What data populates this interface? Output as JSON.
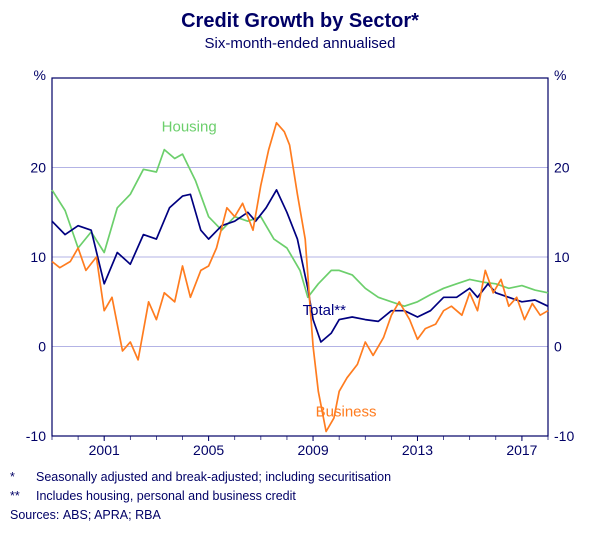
{
  "title": "Credit Growth by Sector*",
  "subtitle": "Six-month-ended annualised",
  "y_unit_left": "%",
  "y_unit_right": "%",
  "chart": {
    "type": "line",
    "background_color": "#ffffff",
    "plot_border_color": "#000066",
    "grid_color": "#9a9add",
    "text_color": "#000066",
    "xlim": [
      1999,
      2018
    ],
    "ylim": [
      -10,
      30
    ],
    "yticks": [
      -10,
      0,
      10,
      20
    ],
    "xticks": [
      2001,
      2005,
      2009,
      2013,
      2017
    ],
    "line_width": 1.7,
    "label_fontsize": 14,
    "tick_fontsize": 14,
    "series": {
      "housing": {
        "label": "Housing",
        "color": "#6ccf6c",
        "label_pos": {
          "x": 2003.2,
          "y": 24
        },
        "data": [
          [
            1999.0,
            17.5
          ],
          [
            1999.5,
            15.2
          ],
          [
            2000.0,
            11.0
          ],
          [
            2000.5,
            12.8
          ],
          [
            2001.0,
            10.5
          ],
          [
            2001.5,
            15.5
          ],
          [
            2002.0,
            17.0
          ],
          [
            2002.5,
            19.8
          ],
          [
            2003.0,
            19.5
          ],
          [
            2003.3,
            22.0
          ],
          [
            2003.7,
            21.0
          ],
          [
            2004.0,
            21.5
          ],
          [
            2004.5,
            18.5
          ],
          [
            2005.0,
            14.5
          ],
          [
            2005.5,
            13.0
          ],
          [
            2006.0,
            14.5
          ],
          [
            2006.5,
            14.0
          ],
          [
            2007.0,
            14.5
          ],
          [
            2007.5,
            12.0
          ],
          [
            2008.0,
            11.0
          ],
          [
            2008.5,
            8.5
          ],
          [
            2008.8,
            5.5
          ],
          [
            2009.2,
            7.0
          ],
          [
            2009.7,
            8.5
          ],
          [
            2010.0,
            8.5
          ],
          [
            2010.5,
            8.0
          ],
          [
            2011.0,
            6.5
          ],
          [
            2011.5,
            5.5
          ],
          [
            2012.0,
            5.0
          ],
          [
            2012.5,
            4.5
          ],
          [
            2013.0,
            5.0
          ],
          [
            2013.5,
            5.8
          ],
          [
            2014.0,
            6.5
          ],
          [
            2014.5,
            7.0
          ],
          [
            2015.0,
            7.5
          ],
          [
            2015.5,
            7.2
          ],
          [
            2016.0,
            7.0
          ],
          [
            2016.5,
            6.5
          ],
          [
            2017.0,
            6.8
          ],
          [
            2017.5,
            6.3
          ],
          [
            2018.0,
            6.0
          ]
        ]
      },
      "total": {
        "label": "Total**",
        "color": "#000080",
        "label_pos": {
          "x": 2008.6,
          "y": 3.5
        },
        "data": [
          [
            1999.0,
            14.0
          ],
          [
            1999.5,
            12.5
          ],
          [
            2000.0,
            13.5
          ],
          [
            2000.5,
            13.0
          ],
          [
            2001.0,
            7.0
          ],
          [
            2001.5,
            10.5
          ],
          [
            2002.0,
            9.2
          ],
          [
            2002.5,
            12.5
          ],
          [
            2003.0,
            12.0
          ],
          [
            2003.5,
            15.5
          ],
          [
            2004.0,
            16.8
          ],
          [
            2004.3,
            17.0
          ],
          [
            2004.7,
            13.0
          ],
          [
            2005.0,
            12.0
          ],
          [
            2005.5,
            13.5
          ],
          [
            2006.0,
            14.0
          ],
          [
            2006.5,
            15.0
          ],
          [
            2006.8,
            14.0
          ],
          [
            2007.2,
            15.5
          ],
          [
            2007.6,
            17.5
          ],
          [
            2008.0,
            15.0
          ],
          [
            2008.4,
            12.0
          ],
          [
            2008.8,
            6.5
          ],
          [
            2009.0,
            3.0
          ],
          [
            2009.3,
            0.5
          ],
          [
            2009.7,
            1.5
          ],
          [
            2010.0,
            3.0
          ],
          [
            2010.5,
            3.3
          ],
          [
            2011.0,
            3.0
          ],
          [
            2011.5,
            2.8
          ],
          [
            2012.0,
            4.0
          ],
          [
            2012.5,
            4.0
          ],
          [
            2013.0,
            3.3
          ],
          [
            2013.5,
            4.0
          ],
          [
            2014.0,
            5.5
          ],
          [
            2014.5,
            5.5
          ],
          [
            2015.0,
            6.5
          ],
          [
            2015.3,
            5.5
          ],
          [
            2015.7,
            7.0
          ],
          [
            2016.0,
            6.0
          ],
          [
            2016.5,
            5.5
          ],
          [
            2017.0,
            5.0
          ],
          [
            2017.5,
            5.2
          ],
          [
            2018.0,
            4.5
          ]
        ]
      },
      "business": {
        "label": "Business",
        "color": "#ff7c1f",
        "label_pos": {
          "x": 2009.1,
          "y": -7.8
        },
        "data": [
          [
            1999.0,
            9.5
          ],
          [
            1999.3,
            8.8
          ],
          [
            1999.7,
            9.5
          ],
          [
            2000.0,
            11.0
          ],
          [
            2000.3,
            8.5
          ],
          [
            2000.7,
            10.0
          ],
          [
            2001.0,
            4.0
          ],
          [
            2001.3,
            5.5
          ],
          [
            2001.7,
            -0.5
          ],
          [
            2002.0,
            0.5
          ],
          [
            2002.3,
            -1.5
          ],
          [
            2002.7,
            5.0
          ],
          [
            2003.0,
            3.0
          ],
          [
            2003.3,
            6.0
          ],
          [
            2003.7,
            5.0
          ],
          [
            2004.0,
            9.0
          ],
          [
            2004.3,
            5.5
          ],
          [
            2004.7,
            8.5
          ],
          [
            2005.0,
            9.0
          ],
          [
            2005.3,
            11.0
          ],
          [
            2005.7,
            15.5
          ],
          [
            2006.0,
            14.5
          ],
          [
            2006.3,
            16.0
          ],
          [
            2006.7,
            13.0
          ],
          [
            2007.0,
            18.0
          ],
          [
            2007.3,
            22.0
          ],
          [
            2007.6,
            25.0
          ],
          [
            2007.9,
            24.0
          ],
          [
            2008.1,
            22.5
          ],
          [
            2008.4,
            17.0
          ],
          [
            2008.7,
            12.0
          ],
          [
            2008.9,
            4.0
          ],
          [
            2009.0,
            0.0
          ],
          [
            2009.2,
            -5.0
          ],
          [
            2009.5,
            -9.5
          ],
          [
            2009.8,
            -8.0
          ],
          [
            2010.0,
            -5.0
          ],
          [
            2010.3,
            -3.5
          ],
          [
            2010.7,
            -2.0
          ],
          [
            2011.0,
            0.5
          ],
          [
            2011.3,
            -1.0
          ],
          [
            2011.7,
            1.0
          ],
          [
            2012.0,
            3.5
          ],
          [
            2012.3,
            5.0
          ],
          [
            2012.7,
            3.0
          ],
          [
            2013.0,
            0.8
          ],
          [
            2013.3,
            2.0
          ],
          [
            2013.7,
            2.5
          ],
          [
            2014.0,
            4.0
          ],
          [
            2014.3,
            4.5
          ],
          [
            2014.7,
            3.5
          ],
          [
            2015.0,
            6.0
          ],
          [
            2015.3,
            4.0
          ],
          [
            2015.6,
            8.5
          ],
          [
            2015.9,
            6.0
          ],
          [
            2016.2,
            7.5
          ],
          [
            2016.5,
            4.5
          ],
          [
            2016.8,
            5.5
          ],
          [
            2017.1,
            3.0
          ],
          [
            2017.4,
            4.8
          ],
          [
            2017.7,
            3.5
          ],
          [
            2018.0,
            4.0
          ]
        ]
      }
    }
  },
  "footnotes": [
    {
      "mark": "*",
      "text": "Seasonally adjusted and break-adjusted; including securitisation"
    },
    {
      "mark": "**",
      "text": "Includes housing, personal and business credit"
    }
  ],
  "sources_label": "Sources:",
  "sources": "ABS; APRA; RBA"
}
